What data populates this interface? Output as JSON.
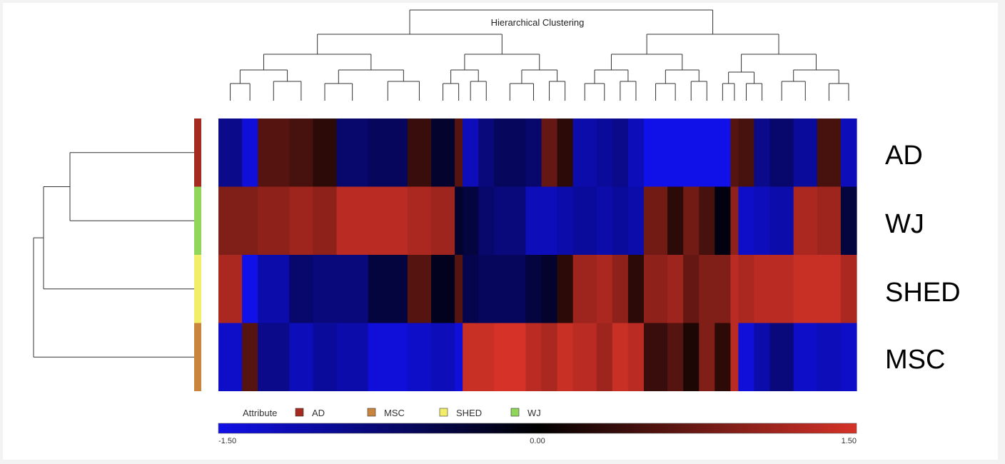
{
  "chart_data": {
    "type": "heatmap",
    "title": "Hierarchical Clustering",
    "rows": [
      "AD",
      "WJ",
      "SHED",
      "MSC"
    ],
    "row_attribute_colors": [
      "#a52a1f",
      "#8fd65a",
      "#f2ee6a",
      "#c9843d"
    ],
    "value_range": [
      -1.5,
      1.5
    ],
    "colorbar_ticks": [
      "-1.50",
      "0.00",
      "1.50"
    ],
    "legend_label": "Attribute",
    "legend": [
      {
        "name": "AD",
        "color": "#a52a1f"
      },
      {
        "name": "MSC",
        "color": "#c9843d"
      },
      {
        "name": "SHED",
        "color": "#f2ee6a"
      },
      {
        "name": "WJ",
        "color": "#8fd65a"
      }
    ],
    "colors": {
      "low": "#1010e8",
      "mid": "#000000",
      "high": "#d63228"
    },
    "column_segments": [
      {
        "w": 3,
        "v": [
          -0.9,
          0.9,
          1.2,
          -1.3
        ]
      },
      {
        "w": 2,
        "v": [
          -1.4,
          0.9,
          -1.5,
          0.6
        ]
      },
      {
        "w": 4,
        "v": [
          0.6,
          1.0,
          -1.1,
          -0.9
        ]
      },
      {
        "w": 3,
        "v": [
          0.5,
          1.1,
          -0.7,
          -1.2
        ]
      },
      {
        "w": 3,
        "v": [
          0.3,
          1.0,
          -0.8,
          -1.0
        ]
      },
      {
        "w": 4,
        "v": [
          -0.7,
          1.3,
          -0.8,
          -1.1
        ]
      },
      {
        "w": 5,
        "v": [
          -0.6,
          1.3,
          -0.4,
          -1.4
        ]
      },
      {
        "w": 3,
        "v": [
          0.4,
          1.2,
          0.6,
          -1.3
        ]
      },
      {
        "w": 3,
        "v": [
          -0.3,
          1.1,
          -0.2,
          -1.2
        ]
      },
      {
        "w": 1,
        "v": [
          0.6,
          -0.3,
          0.6,
          -1.4
        ]
      },
      {
        "w": 2,
        "v": [
          -1.2,
          -0.4,
          -0.5,
          1.4
        ]
      },
      {
        "w": 2,
        "v": [
          -0.8,
          -0.7,
          -0.6,
          1.4
        ]
      },
      {
        "w": 4,
        "v": [
          -0.6,
          -0.8,
          -0.6,
          1.5
        ]
      },
      {
        "w": 2,
        "v": [
          -0.7,
          -1.2,
          -0.4,
          1.3
        ]
      },
      {
        "w": 2,
        "v": [
          0.7,
          -1.2,
          -0.3,
          1.2
        ]
      },
      {
        "w": 2,
        "v": [
          0.3,
          -1.1,
          0.3,
          1.4
        ]
      },
      {
        "w": 3,
        "v": [
          -1.1,
          -1.0,
          1.1,
          1.3
        ]
      },
      {
        "w": 2,
        "v": [
          -1.0,
          -1.1,
          1.2,
          1.1
        ]
      },
      {
        "w": 2,
        "v": [
          -0.9,
          -1.0,
          1.0,
          1.4
        ]
      },
      {
        "w": 2,
        "v": [
          -1.2,
          -1.1,
          0.3,
          1.3
        ]
      },
      {
        "w": 3,
        "v": [
          -1.5,
          0.8,
          1.0,
          0.4
        ]
      },
      {
        "w": 2,
        "v": [
          -1.5,
          0.3,
          1.1,
          0.6
        ]
      },
      {
        "w": 2,
        "v": [
          -1.5,
          0.8,
          0.7,
          0.2
        ]
      },
      {
        "w": 2,
        "v": [
          -1.5,
          0.5,
          0.9,
          0.9
        ]
      },
      {
        "w": 2,
        "v": [
          -1.5,
          -0.1,
          0.9,
          0.3
        ]
      },
      {
        "w": 1,
        "v": [
          0.6,
          1.0,
          1.3,
          1.3
        ]
      },
      {
        "w": 2,
        "v": [
          0.5,
          -1.3,
          1.2,
          -1.4
        ]
      },
      {
        "w": 2,
        "v": [
          -0.9,
          -1.2,
          1.3,
          -1.1
        ]
      },
      {
        "w": 3,
        "v": [
          -0.7,
          -1.1,
          1.3,
          -0.8
        ]
      },
      {
        "w": 3,
        "v": [
          -1.0,
          1.2,
          1.4,
          -1.3
        ]
      },
      {
        "w": 3,
        "v": [
          0.5,
          1.1,
          1.4,
          -1.2
        ]
      },
      {
        "w": 2,
        "v": [
          -1.2,
          -0.4,
          1.2,
          -1.3
        ]
      }
    ],
    "column_dendrogram_levels": [
      [
        2,
        1,
        3,
        2,
        1,
        2,
        3,
        1,
        2,
        1,
        3,
        2,
        1,
        2,
        1,
        3,
        2,
        1,
        2,
        3,
        1,
        2,
        1,
        3,
        2,
        1,
        2,
        1,
        3,
        2,
        1,
        2
      ]
    ]
  }
}
